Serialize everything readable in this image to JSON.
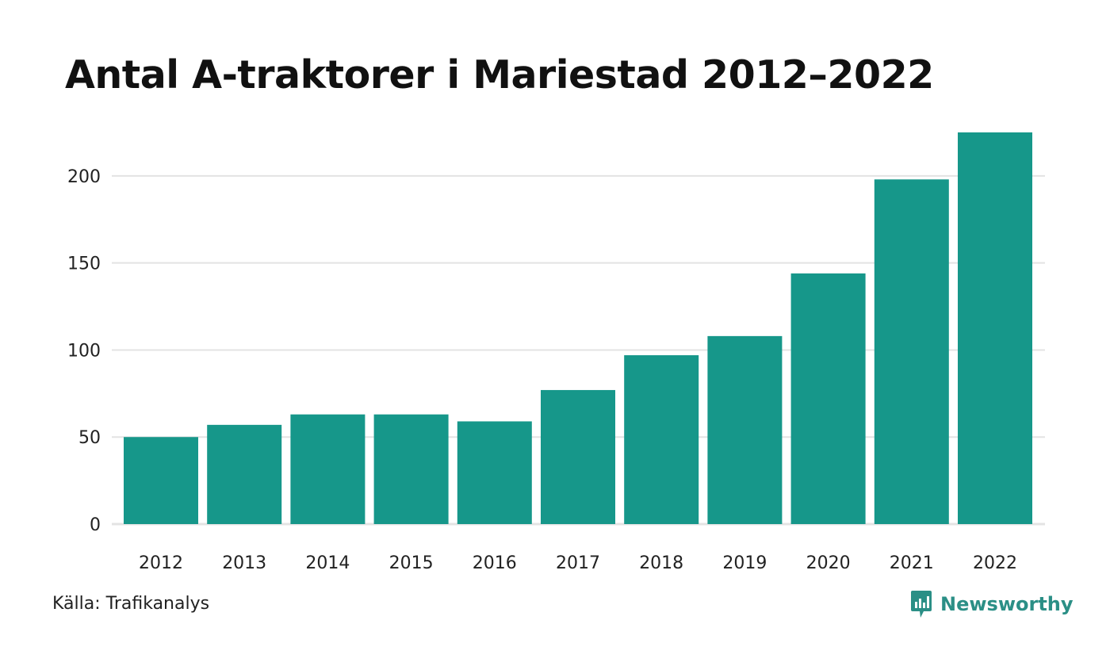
{
  "title": "Antal A-traktorer i Mariestad 2012–2022",
  "source": "Källa: Trafikanalys",
  "brand": {
    "name": "Newsworthy",
    "icon": "newsworthy-logo-icon",
    "color": "#2b8f86"
  },
  "chart_data": {
    "type": "bar",
    "categories": [
      "2012",
      "2013",
      "2014",
      "2015",
      "2016",
      "2017",
      "2018",
      "2019",
      "2020",
      "2021",
      "2022"
    ],
    "values": [
      50,
      57,
      63,
      63,
      59,
      77,
      97,
      108,
      144,
      198,
      225
    ],
    "title": "Antal A-traktorer i Mariestad 2012–2022",
    "xlabel": "",
    "ylabel": "",
    "ylim": [
      0,
      225
    ],
    "yticks": [
      0,
      50,
      100,
      150,
      200
    ],
    "grid": true,
    "legend": "none",
    "bar_color": "#16978a",
    "grid_color": "#e3e3e3"
  }
}
